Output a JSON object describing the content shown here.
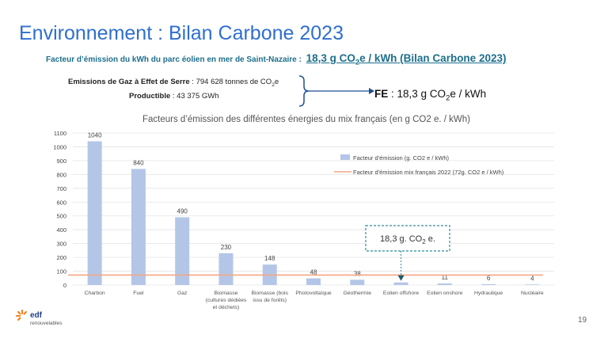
{
  "title": "Environnement : Bilan Carbone 2023",
  "subtitle": {
    "label": "Facteur d’émission du kWh du parc éolien en mer de Saint-Nazaire :",
    "value_prefix": "18,3 g CO",
    "value_sub": "2",
    "value_suffix": "e / kWh (Bilan Carbone 2023)"
  },
  "emissions": {
    "label": "Emissions de Gaz à Effet de Serre",
    "value_prefix": " : 794 628 tonnes de CO",
    "value_sub": "2",
    "value_suffix": "e"
  },
  "productible": {
    "label": "Productible",
    "value": " : 43 375 GWh"
  },
  "fe": {
    "label": "FE",
    "value_prefix": " : 18,3 g CO",
    "value_sub": "2",
    "value_suffix": "e / kWh"
  },
  "chart_title": "Facteurs d’émission des différentes énergies du mix français (en g CO2 e. / kWh)",
  "chart_data": {
    "type": "bar",
    "title": "Facteurs d’émission des différentes énergies du mix français (en g CO2 e. / kWh)",
    "categories": [
      [
        "Charbon"
      ],
      [
        "Fuel"
      ],
      [
        "Gaz"
      ],
      [
        "Biomasse",
        "(cultures dédiées",
        "et déchets)"
      ],
      [
        "Biomasse (bois",
        "issu de forêts)"
      ],
      [
        "Photovoltaïque"
      ],
      [
        "Géothermie"
      ],
      [
        "Eolien offshore"
      ],
      [
        "Eolien onshore"
      ],
      [
        "Hydraulique"
      ],
      [
        "Nucléaire"
      ]
    ],
    "series": [
      {
        "name": "Facteur d'émission (g. CO2 e / kWh)",
        "values": [
          1040,
          840,
          490,
          230,
          148,
          48,
          38,
          18.3,
          11,
          6,
          4
        ],
        "labels": [
          "1040",
          "840",
          "490",
          "230",
          "148",
          "48",
          "38",
          "",
          "11",
          "6",
          "4"
        ],
        "color": "#b4c6e7"
      }
    ],
    "reference_line": {
      "name": "Facteur d'émission mix français 2022 (72g. CO2 e / kWh)",
      "value": 72,
      "color": "#f4a582"
    },
    "ylim": [
      0,
      1100
    ],
    "yticks": [
      0,
      100,
      200,
      300,
      400,
      500,
      600,
      700,
      800,
      900,
      1000,
      1100
    ],
    "grid": true,
    "legend_position": "right",
    "annotation": {
      "text_prefix": "18,3 g. CO",
      "text_sub": "2",
      "text_suffix": " e.",
      "target_category": "Eolien offshore",
      "color": "#2e8b9a"
    }
  },
  "logo": {
    "name": "edf-logo-icon",
    "text": "edf",
    "subtext": "renouvelables"
  },
  "page_number": "19"
}
